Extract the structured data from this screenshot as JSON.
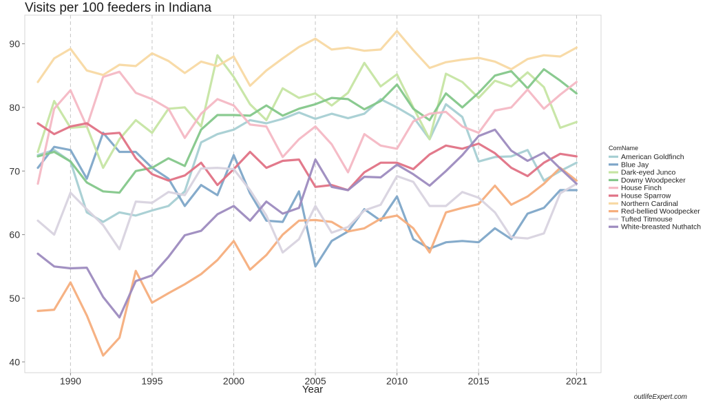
{
  "credit": "outlifeExpert.com",
  "chart_data": {
    "type": "line",
    "title": "Visits per 100 feeders in Indiana",
    "xlabel": "Year",
    "ylabel": "",
    "xlim": [
      1987.2,
      2022.5
    ],
    "ylim": [
      38.3,
      94.5
    ],
    "x_ticks": [
      1990,
      1995,
      2000,
      2005,
      2010,
      2015,
      2021
    ],
    "y_ticks": [
      40,
      50,
      60,
      70,
      80,
      90
    ],
    "grid_x": "dashed",
    "grid_y": false,
    "legend_title": "ComName",
    "legend_position": "right",
    "x": [
      1988,
      1989,
      1990,
      1991,
      1992,
      1993,
      1994,
      1995,
      1996,
      1997,
      1998,
      1999,
      2000,
      2001,
      2002,
      2003,
      2004,
      2005,
      2006,
      2007,
      2008,
      2009,
      2010,
      2011,
      2012,
      2013,
      2014,
      2015,
      2016,
      2017,
      2018,
      2019,
      2020,
      2021
    ],
    "series": [
      {
        "name": "American Goldfinch",
        "color": "#a6cfd3",
        "values": [
          72.5,
          73.3,
          71.5,
          63.5,
          62.0,
          63.5,
          63.0,
          63.8,
          64.5,
          66.8,
          74.5,
          75.8,
          76.5,
          78.0,
          77.5,
          78.2,
          79.2,
          78.2,
          79.0,
          78.3,
          79.0,
          81.3,
          80.0,
          78.5,
          75.0,
          80.5,
          78.5,
          71.5,
          72.2,
          72.3,
          73.3,
          68.5,
          70.0,
          71.3
        ]
      },
      {
        "name": "Blue Jay",
        "color": "#7ea6c8",
        "values": [
          70.5,
          73.8,
          73.3,
          68.8,
          76.0,
          73.0,
          73.0,
          70.5,
          68.8,
          64.5,
          67.8,
          66.2,
          72.5,
          66.5,
          62.2,
          62.0,
          66.8,
          55.0,
          59.0,
          60.5,
          64.0,
          62.2,
          66.0,
          59.3,
          57.8,
          58.8,
          59.0,
          58.8,
          61.0,
          59.3,
          63.3,
          64.2,
          67.0,
          67.0
        ]
      },
      {
        "name": "Dark-eyed Junco",
        "color": "#c6e5a3",
        "values": [
          73.0,
          81.0,
          76.8,
          77.0,
          70.5,
          75.0,
          78.0,
          76.0,
          79.8,
          80.0,
          77.0,
          88.2,
          84.8,
          80.5,
          78.0,
          83.0,
          81.5,
          82.2,
          80.3,
          82.3,
          87.0,
          83.3,
          85.2,
          80.0,
          75.0,
          85.3,
          84.0,
          81.5,
          84.2,
          83.3,
          85.5,
          83.2,
          76.8,
          77.7
        ]
      },
      {
        "name": "Downy Woodpecker",
        "color": "#84c78a",
        "values": [
          72.3,
          73.0,
          71.5,
          68.2,
          66.8,
          66.6,
          70.0,
          70.5,
          72.0,
          70.8,
          76.5,
          78.8,
          78.8,
          78.7,
          80.3,
          78.7,
          79.8,
          80.5,
          81.5,
          81.3,
          79.7,
          81.0,
          83.6,
          79.8,
          78.0,
          82.2,
          80.0,
          82.3,
          85.0,
          85.7,
          83.0,
          86.0,
          84.2,
          82.2
        ]
      },
      {
        "name": "House Finch",
        "color": "#f4b8c4",
        "values": [
          68.0,
          79.8,
          82.7,
          77.0,
          84.8,
          85.6,
          82.3,
          81.3,
          79.8,
          75.2,
          79.0,
          81.3,
          80.3,
          77.3,
          77.0,
          72.2,
          75.0,
          77.0,
          74.2,
          69.8,
          75.8,
          74.0,
          73.5,
          77.8,
          79.0,
          79.3,
          77.0,
          76.0,
          79.5,
          80.0,
          82.8,
          79.8,
          82.0,
          84.0
        ]
      },
      {
        "name": "House Sparrow",
        "color": "#e07285",
        "values": [
          77.5,
          75.8,
          77.0,
          77.5,
          75.8,
          76.0,
          72.0,
          69.5,
          68.5,
          69.3,
          71.3,
          67.8,
          70.3,
          73.0,
          70.5,
          71.6,
          71.8,
          67.5,
          67.8,
          67.0,
          69.8,
          71.3,
          71.3,
          70.3,
          72.6,
          74.0,
          73.5,
          74.3,
          72.8,
          70.5,
          69.2,
          71.3,
          72.7,
          72.3
        ]
      },
      {
        "name": "Northern Cardinal",
        "color": "#f8d9a3",
        "values": [
          84.0,
          87.7,
          89.2,
          85.8,
          85.1,
          86.7,
          86.5,
          88.5,
          87.3,
          85.4,
          87.2,
          86.5,
          88.0,
          83.4,
          85.8,
          87.7,
          89.5,
          90.8,
          89.1,
          89.4,
          88.9,
          89.1,
          92.0,
          89.0,
          86.2,
          87.1,
          87.5,
          87.8,
          87.2,
          86.0,
          87.6,
          88.2,
          88.0,
          89.4
        ]
      },
      {
        "name": "Red-bellied Woodpecker",
        "color": "#f6ae7d",
        "values": [
          48.0,
          48.2,
          52.5,
          47.3,
          41.0,
          43.8,
          54.3,
          49.3,
          50.8,
          52.2,
          53.8,
          56.0,
          59.0,
          54.5,
          56.8,
          60.0,
          62.2,
          62.3,
          62.0,
          60.5,
          61.0,
          62.5,
          63.0,
          61.0,
          57.2,
          63.5,
          64.2,
          64.8,
          67.7,
          64.7,
          66.0,
          68.0,
          70.5,
          68.5
        ]
      },
      {
        "name": "Tufted Titmouse",
        "color": "#d8d3df",
        "values": [
          62.2,
          60.0,
          66.6,
          64.0,
          61.5,
          57.7,
          65.2,
          65.0,
          66.7,
          66.2,
          70.4,
          70.5,
          70.3,
          67.0,
          63.0,
          57.2,
          59.3,
          64.5,
          60.3,
          61.2,
          63.8,
          64.7,
          69.2,
          68.3,
          64.5,
          64.5,
          66.7,
          65.8,
          63.5,
          59.6,
          59.4,
          60.2,
          66.5,
          68.0
        ]
      },
      {
        "name": "White-breasted Nuthatch",
        "color": "#9d8bbf",
        "values": [
          57.0,
          55.0,
          54.7,
          54.8,
          50.2,
          47.0,
          52.7,
          53.6,
          56.5,
          59.9,
          60.6,
          63.2,
          64.5,
          62.2,
          65.2,
          63.3,
          64.2,
          71.8,
          67.5,
          67.0,
          69.1,
          69.0,
          71.0,
          69.5,
          67.7,
          70.0,
          72.5,
          75.5,
          76.5,
          73.2,
          71.6,
          72.9,
          70.4,
          68.0
        ]
      }
    ]
  }
}
